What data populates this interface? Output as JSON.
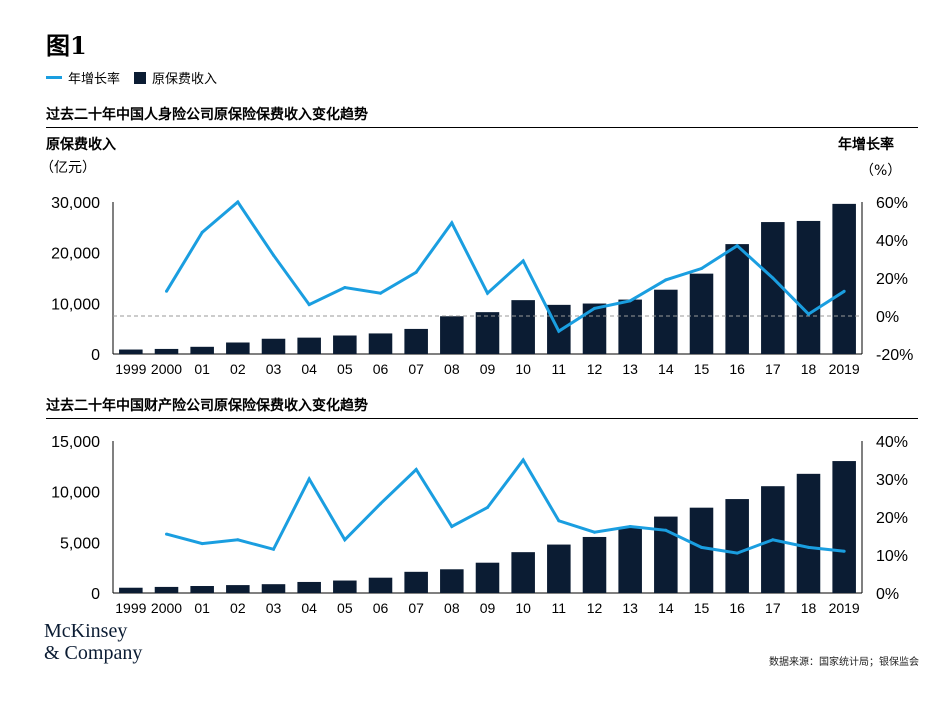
{
  "figure_title": "图1",
  "legend": {
    "growth": "年增长率",
    "premium": "原保费收入"
  },
  "footer": {
    "logo_line1": "McKinsey",
    "logo_line2": "& Company",
    "source": "数据来源：国家统计局；银保监会"
  },
  "colors": {
    "bar": "#0b1c33",
    "line": "#1a9ee0",
    "ref": "#9a9a9a"
  },
  "chart_data": [
    {
      "type": "bar+line",
      "title": "过去二十年中国人身险公司原保险保费收入变化趋势",
      "ylabel_left": "原保费收入",
      "ylabel_left_unit": "（亿元）",
      "ylabel_right": "年增长率",
      "ylabel_right_unit": "（%）",
      "categories": [
        "1999",
        "2000",
        "01",
        "02",
        "03",
        "04",
        "05",
        "06",
        "07",
        "08",
        "09",
        "10",
        "11",
        "12",
        "13",
        "14",
        "15",
        "16",
        "17",
        "18",
        "2019"
      ],
      "series": [
        {
          "name": "原保费收入",
          "axis": "left",
          "values": [
            880,
            1000,
            1420,
            2270,
            3010,
            3230,
            3650,
            4060,
            4950,
            7450,
            8260,
            10630,
            9700,
            9960,
            10740,
            12690,
            15860,
            21690,
            26040,
            26260,
            29630
          ]
        },
        {
          "name": "年增长率",
          "axis": "right",
          "values": [
            null,
            13,
            44,
            60,
            32,
            6,
            15,
            12,
            23,
            49,
            12,
            29,
            -8,
            4,
            8,
            19,
            25,
            37,
            20,
            1,
            13
          ]
        }
      ],
      "left_axis": {
        "min": 0,
        "max": 30000,
        "ticks": [
          0,
          10000,
          20000,
          30000
        ],
        "tick_labels": [
          "0",
          "10,000",
          "20,000",
          "30,000"
        ]
      },
      "right_axis": {
        "min": -20,
        "max": 60,
        "ticks": [
          -20,
          0,
          20,
          40,
          60
        ],
        "tick_labels": [
          "-20%",
          "0%",
          "20%",
          "40%",
          "60%"
        ]
      },
      "reference_line": 0
    },
    {
      "type": "bar+line",
      "title": "过去二十年中国财产险公司原保险保费收入变化趋势",
      "categories": [
        "1999",
        "2000",
        "01",
        "02",
        "03",
        "04",
        "05",
        "06",
        "07",
        "08",
        "09",
        "10",
        "11",
        "12",
        "13",
        "14",
        "15",
        "16",
        "17",
        "18",
        "2019"
      ],
      "series": [
        {
          "name": "原保费收入",
          "axis": "left",
          "values": [
            520,
            600,
            690,
            780,
            870,
            1090,
            1230,
            1510,
            2090,
            2340,
            2990,
            4030,
            4780,
            5530,
            6480,
            7540,
            8420,
            9270,
            10540,
            11760,
            13020
          ]
        },
        {
          "name": "年增长率",
          "axis": "right",
          "values": [
            null,
            15.5,
            13,
            14,
            11.5,
            30,
            14,
            23.5,
            32.5,
            17.5,
            22.5,
            35,
            19,
            16,
            17.5,
            16.5,
            12,
            10.5,
            14,
            12,
            11
          ]
        }
      ],
      "left_axis": {
        "min": 0,
        "max": 15000,
        "ticks": [
          0,
          5000,
          10000,
          15000
        ],
        "tick_labels": [
          "0",
          "5,000",
          "10,000",
          "15,000"
        ]
      },
      "right_axis": {
        "min": 0,
        "max": 40,
        "ticks": [
          0,
          10,
          20,
          30,
          40
        ],
        "tick_labels": [
          "0%",
          "10%",
          "20%",
          "30%",
          "40%"
        ]
      }
    }
  ]
}
